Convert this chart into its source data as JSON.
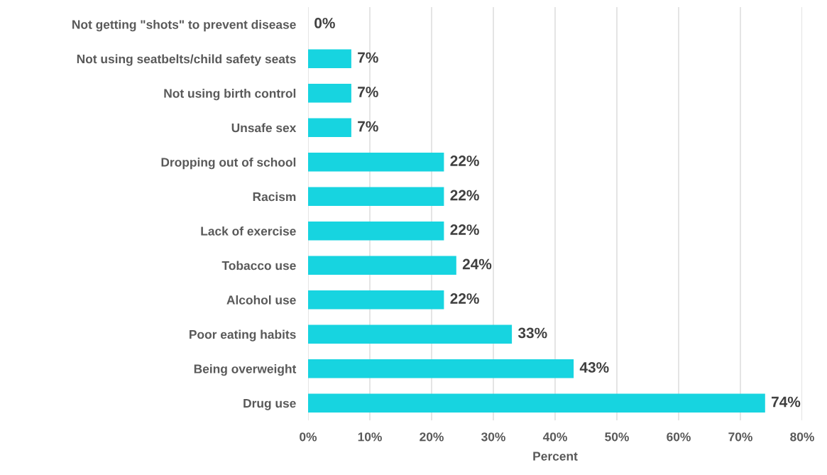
{
  "chart_data": {
    "type": "bar",
    "orientation": "horizontal",
    "xlabel": "Percent",
    "categories": [
      "Not getting \"shots\" to prevent disease",
      "Not using seatbelts/child safety seats",
      "Not using birth control",
      "Unsafe sex",
      "Dropping out of school",
      "Racism",
      "Lack of exercise",
      "Tobacco use",
      "Alcohol use",
      "Poor eating habits",
      "Being overweight",
      "Drug use"
    ],
    "values": [
      0,
      7,
      7,
      7,
      22,
      22,
      22,
      24,
      22,
      33,
      43,
      74
    ],
    "value_labels": [
      "0%",
      "7%",
      "7%",
      "7%",
      "22%",
      "22%",
      "22%",
      "24%",
      "22%",
      "33%",
      "43%",
      "74%"
    ],
    "color": "#17d4e0",
    "xlim": [
      0,
      80
    ],
    "xticks": [
      {
        "value": 0,
        "label": "0%"
      },
      {
        "value": 10,
        "label": "10%"
      },
      {
        "value": 20,
        "label": "20%"
      },
      {
        "value": 30,
        "label": "30%"
      },
      {
        "value": 40,
        "label": "40%"
      },
      {
        "value": 50,
        "label": "50%"
      },
      {
        "value": 60,
        "label": "60%"
      },
      {
        "value": 70,
        "label": "70%"
      },
      {
        "value": 80,
        "label": "80%"
      }
    ],
    "grid": "x",
    "legend": false
  }
}
